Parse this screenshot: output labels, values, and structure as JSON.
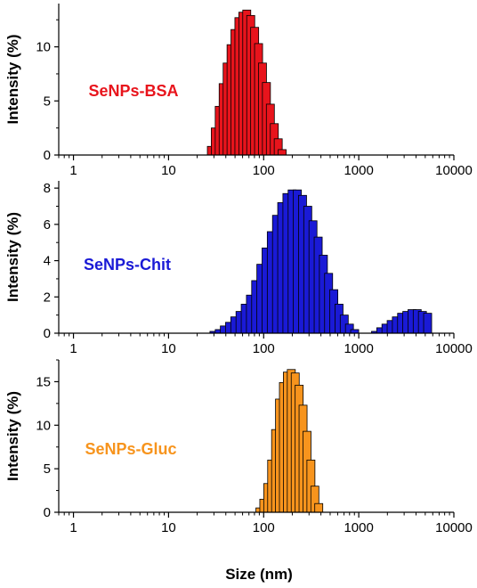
{
  "chart_data": [
    {
      "type": "bar",
      "panel": "top",
      "xscale": "log",
      "xlim": [
        0.7,
        10000
      ],
      "xticks": [
        "1",
        "10",
        "100",
        "1000",
        "10000"
      ],
      "ylabel": "Intensity (%)",
      "ylim": [
        0,
        14
      ],
      "yticks": [
        "0",
        "5",
        "10"
      ],
      "annotation": "SeNPs-BSA",
      "color": "#e8141c",
      "series": [
        {
          "x": [
            28.2,
            31.0,
            34.1,
            37.5,
            41.3,
            45.4,
            49.9,
            54.9,
            60.4,
            66.4,
            73.1,
            80.4,
            88.4,
            97.2,
            106.9,
            117.6,
            129.4,
            142.3,
            156.5,
            172.2,
            189.4
          ],
          "y": [
            0.8,
            2.5,
            4.5,
            6.6,
            8.5,
            10.2,
            11.6,
            12.7,
            13.2,
            13.4,
            12.9,
            11.8,
            10.3,
            8.5,
            6.7,
            4.7,
            2.9,
            1.5,
            0.5,
            0,
            0
          ]
        }
      ]
    },
    {
      "type": "bar",
      "panel": "middle",
      "xscale": "log",
      "xlim": [
        0.7,
        10000
      ],
      "xticks": [
        "1",
        "10",
        "100",
        "1000",
        "10000"
      ],
      "ylabel": "Intensity (%)",
      "ylim": [
        0,
        8.4
      ],
      "yticks": [
        "0",
        "2",
        "4",
        "6",
        "8"
      ],
      "annotation": "SeNPs-Chit",
      "color": "#1a1ad6",
      "series": [
        {
          "x": [
            30.0,
            34.1,
            38.6,
            43.8,
            49.7,
            56.4,
            64.0,
            72.6,
            82.4,
            93.4,
            106.0,
            120.3,
            136.5,
            154.8,
            175.6,
            199.2,
            226.0,
            256.4,
            290.9,
            330.0,
            374.4,
            424.7,
            481.9,
            546.7,
            620.2,
            703.6,
            798.3,
            905.6,
            1027.5,
            1165.7,
            1322.5,
            1500.4,
            1702.2,
            1931.1,
            2190.9,
            2485.6,
            2819.9,
            3199.2,
            3629.5,
            4117.7,
            4671.6,
            5299.9
          ],
          "y": [
            0.1,
            0.2,
            0.4,
            0.6,
            0.9,
            1.2,
            1.6,
            2.1,
            2.9,
            3.8,
            4.7,
            5.6,
            6.5,
            7.2,
            7.7,
            7.9,
            7.9,
            7.6,
            7.0,
            6.2,
            5.3,
            4.3,
            3.3,
            2.4,
            1.6,
            1.0,
            0.5,
            0.2,
            0,
            0,
            0,
            0.1,
            0.3,
            0.5,
            0.7,
            0.9,
            1.1,
            1.2,
            1.3,
            1.3,
            1.2,
            1.1
          ]
        }
      ]
    },
    {
      "type": "bar",
      "panel": "bottom",
      "xscale": "log",
      "xlim": [
        0.7,
        10000
      ],
      "xticks": [
        "1",
        "10",
        "100",
        "1000",
        "10000"
      ],
      "xlabel": "Size (nm)",
      "ylabel": "Intensity (%)",
      "ylim": [
        0,
        17.5
      ],
      "yticks": [
        "0",
        "5",
        "10",
        "15"
      ],
      "annotation": "SeNPs-Gluc",
      "color": "#f7941d",
      "series": [
        {
          "x": [
            91.3,
            100.4,
            110.4,
            121.4,
            133.5,
            146.8,
            161.4,
            177.5,
            195.2,
            214.7,
            236.1,
            259.6,
            285.5,
            314.0,
            345.3,
            379.7
          ],
          "y": [
            0.5,
            1.5,
            3.3,
            6.0,
            9.5,
            13.0,
            14.9,
            16.1,
            16.4,
            16.0,
            14.6,
            12.3,
            9.3,
            6.0,
            3.0,
            1.0
          ]
        }
      ]
    }
  ]
}
